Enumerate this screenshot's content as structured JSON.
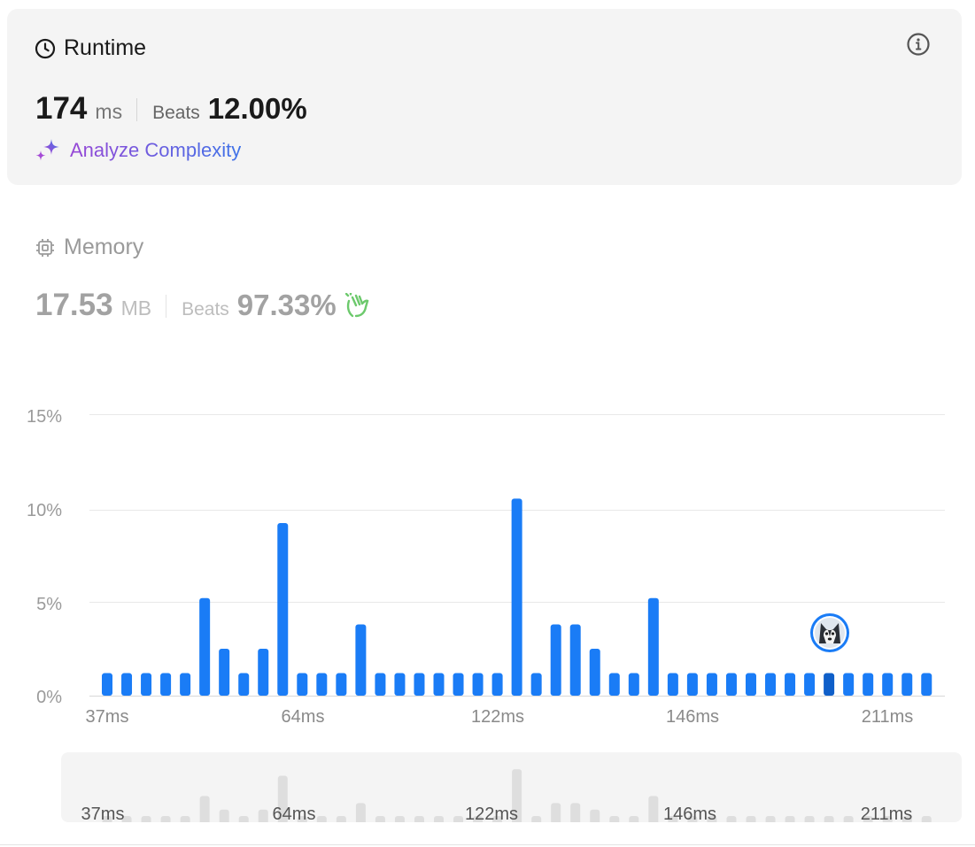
{
  "runtime": {
    "title": "Runtime",
    "value": "174",
    "unit": "ms",
    "beats_label": "Beats",
    "beats_value": "12.00%",
    "analyze_label": "Analyze Complexity"
  },
  "memory": {
    "title": "Memory",
    "value": "17.53",
    "unit": "MB",
    "beats_label": "Beats",
    "beats_value": "97.33%"
  },
  "icons": {
    "runtime": "clock-icon",
    "info": "info-icon",
    "analyze": "sparkle-icon",
    "memory": "chip-icon",
    "clap": "clapping-hands-icon",
    "avatar": "husky-avatar-icon"
  },
  "colors": {
    "bar": "#1a7cf6",
    "bar_highlight": "#0f5fc9",
    "navigator_bar": "#dedede",
    "analyze_start": "#9747d6",
    "analyze_end": "#3f73e8",
    "clap": "#6cc96c"
  },
  "chart_data": {
    "type": "bar",
    "y_unit": "%",
    "ylim": [
      0,
      15
    ],
    "y_ticks": [
      "15%",
      "10%",
      "5%",
      "0%"
    ],
    "x_tick_labels": [
      "37ms",
      "64ms",
      "122ms",
      "146ms",
      "211ms"
    ],
    "tick_bar_index": [
      0,
      10,
      20,
      30,
      40
    ],
    "values": [
      1.2,
      1.2,
      1.2,
      1.2,
      1.2,
      5.2,
      2.5,
      1.2,
      2.5,
      9.2,
      1.2,
      1.2,
      1.2,
      3.8,
      1.2,
      1.2,
      1.2,
      1.2,
      1.2,
      1.2,
      1.2,
      10.5,
      1.2,
      3.8,
      3.8,
      2.5,
      1.2,
      1.2,
      5.2,
      1.2,
      1.2,
      1.2,
      1.2,
      1.2,
      1.2,
      1.2,
      1.2,
      1.2,
      1.2,
      1.2,
      1.2,
      1.2,
      1.2
    ],
    "highlight_index": 37,
    "grid": true,
    "legend": "none",
    "navigator": {
      "x_tick_labels": [
        "37ms",
        "64ms",
        "122ms",
        "146ms",
        "211ms"
      ]
    }
  }
}
